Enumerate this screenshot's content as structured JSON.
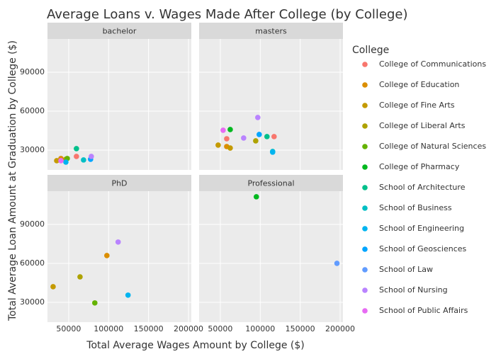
{
  "chart_data": {
    "type": "scatter",
    "title": "Average Loans v. Wages Made After College (by College)",
    "x_label": "Total Average Wages Amount by College ($)",
    "y_label": "Total Average Loan Amount at Graduation by College ($)",
    "legend_title": "College",
    "facets": [
      "bachelor",
      "masters",
      "PhD",
      "Professional"
    ],
    "xlim": [
      23450,
      203500
    ],
    "xticks": [
      50000,
      100000,
      150000,
      200000
    ],
    "ylim": [
      14700,
      115600
    ],
    "yticks": [
      30000,
      60000,
      90000
    ],
    "grid": true,
    "series": [
      {
        "name": "College of Communications",
        "color": "#F8766D",
        "x": [
          [
            59700
          ],
          [
            58000,
            117300
          ],
          [],
          []
        ],
        "values": [
          [
            25100
          ],
          [
            38700,
            40400
          ],
          [],
          []
        ]
      },
      {
        "name": "College of Education",
        "color": "#DB8E00",
        "x": [
          [
            40300
          ],
          [
            58000
          ],
          [
            97800
          ],
          []
        ],
        "values": [
          [
            23500
          ],
          [
            32700
          ],
          [
            66000
          ],
          []
        ]
      },
      {
        "name": "College of Fine Arts",
        "color": "#C49A00",
        "x": [
          [
            35000
          ],
          [
            47300,
            62400
          ],
          [
            30500
          ],
          []
        ],
        "values": [
          [
            21800
          ],
          [
            33800,
            31600
          ],
          [
            42000
          ],
          []
        ]
      },
      {
        "name": "College of Liberal Arts",
        "color": "#AEA200",
        "x": [
          [
            46500
          ],
          [
            94300
          ],
          [
            64200
          ],
          []
        ],
        "values": [
          [
            22900
          ],
          [
            37100
          ],
          [
            49600
          ],
          []
        ]
      },
      {
        "name": "College of Natural Sciences",
        "color": "#64B200",
        "x": [
          [
            48200
          ],
          [],
          [
            82700
          ],
          []
        ],
        "values": [
          [
            23500
          ],
          [],
          [
            29500
          ],
          []
        ]
      },
      {
        "name": "College of Pharmacy",
        "color": "#00B81F",
        "x": [
          [],
          [
            62400
          ],
          [],
          [
            95100
          ]
        ],
        "values": [
          [],
          [
            45800
          ],
          [],
          [
            111300
          ]
        ]
      },
      {
        "name": "School of Architecture",
        "color": "#00C08B",
        "x": [
          [
            59700
          ],
          [
            108400
          ],
          [],
          []
        ],
        "values": [
          [
            31100
          ],
          [
            40400
          ],
          [],
          []
        ]
      },
      {
        "name": "School of Business",
        "color": "#00BFC4",
        "x": [
          [
            68600
          ],
          [
            115500
          ],
          [],
          []
        ],
        "values": [
          [
            22400
          ],
          [
            28900
          ],
          [],
          []
        ]
      },
      {
        "name": "School of Engineering",
        "color": "#00B4F0",
        "x": [
          [
            46500
          ],
          [
            115500
          ],
          [
            124300
          ],
          []
        ],
        "values": [
          [
            20700
          ],
          [
            28400
          ],
          [
            35500
          ],
          []
        ]
      },
      {
        "name": "School of Geosciences",
        "color": "#00A5FF",
        "x": [
          [
            77400
          ],
          [
            98700
          ],
          [],
          []
        ],
        "values": [
          [
            22900
          ],
          [
            42000
          ],
          [],
          []
        ]
      },
      {
        "name": "School of Law",
        "color": "#619CFF",
        "x": [
          [],
          [],
          [],
          [
            196000
          ]
        ],
        "values": [
          [],
          [],
          [],
          [
            60000
          ]
        ]
      },
      {
        "name": "School of Nursing",
        "color": "#B983FF",
        "x": [
          [
            78300
          ],
          [
            96900,
            79200
          ],
          [
            111900
          ],
          []
        ],
        "values": [
          [
            25100
          ],
          [
            55100,
            39300
          ],
          [
            76400
          ],
          []
        ]
      },
      {
        "name": "School of Public Affairs",
        "color": "#E76BF3",
        "x": [
          [
            40300
          ],
          [
            53500
          ],
          [],
          []
        ],
        "values": [
          [
            21800
          ],
          [
            45300
          ],
          [],
          []
        ]
      }
    ]
  }
}
